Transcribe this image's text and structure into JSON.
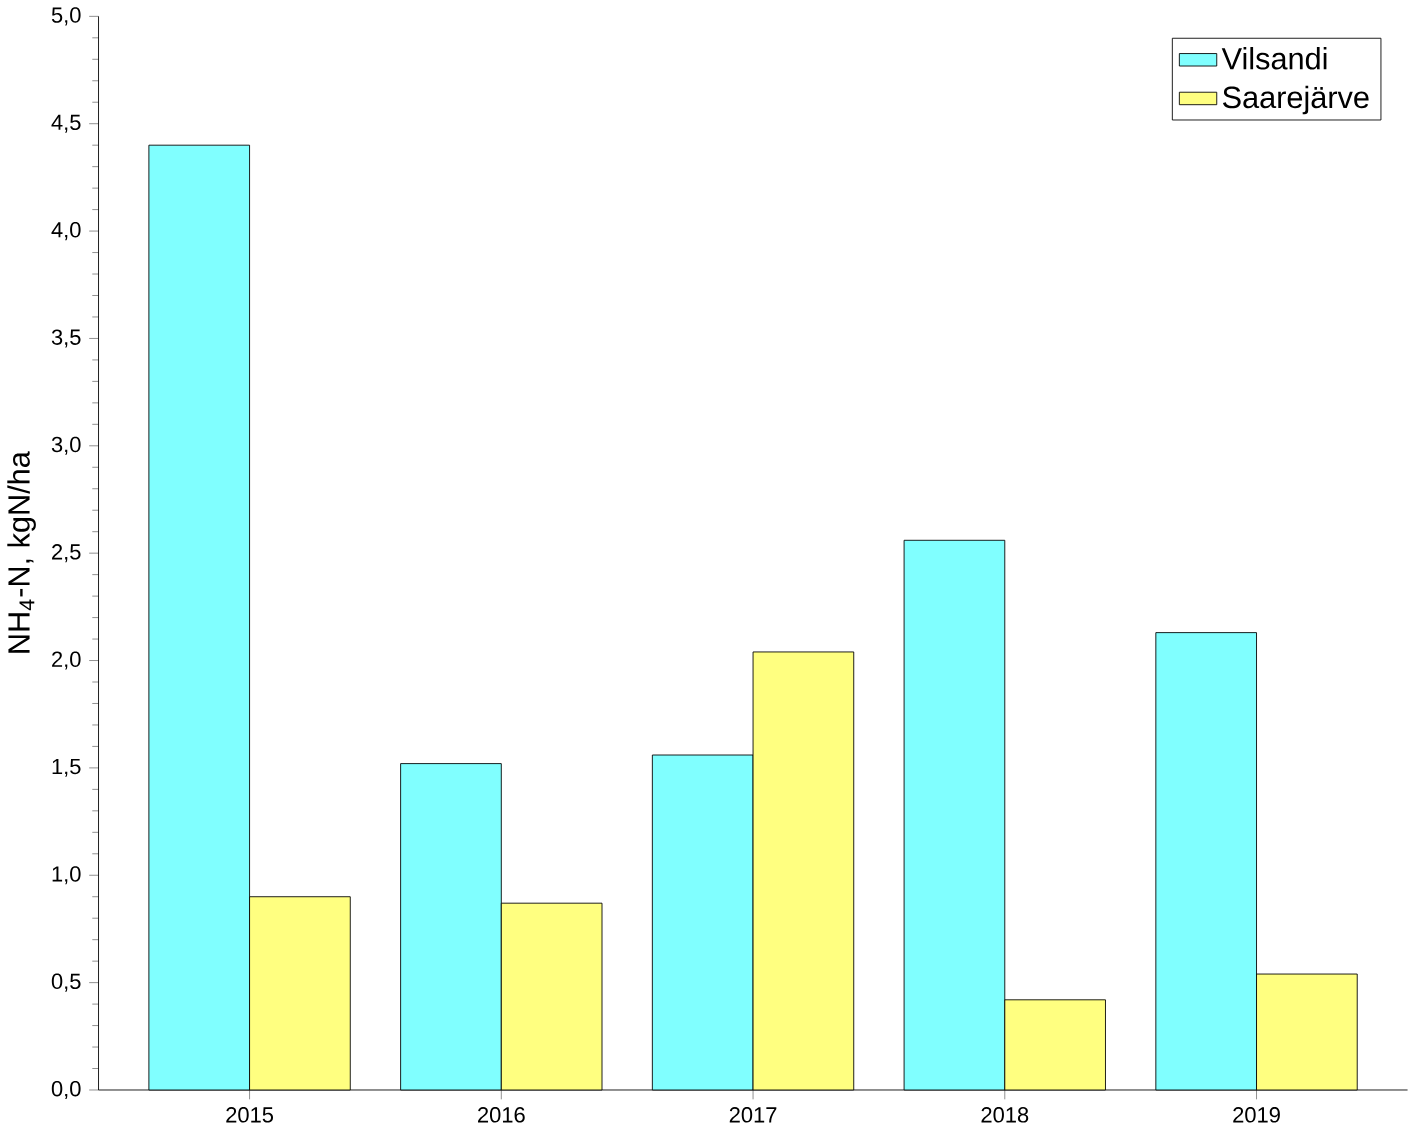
{
  "chart_data": {
    "type": "bar",
    "ylabel": "NH$_{4}$-N, kgN/ha",
    "categories": [
      "2015",
      "2016",
      "2017",
      "2018",
      "2019"
    ],
    "series": [
      {
        "name": "Vilsandi",
        "color": "#80ffff",
        "values": [
          4.4,
          1.52,
          1.56,
          2.56,
          2.13
        ]
      },
      {
        "name": "Saarejärve",
        "color": "#ffff80",
        "values": [
          0.9,
          0.87,
          2.04,
          0.42,
          0.54
        ]
      }
    ],
    "ylim": [
      0,
      5
    ],
    "yticks": [
      {
        "value": 0,
        "label": "0,0"
      },
      {
        "value": 0.5,
        "label": "0,5"
      },
      {
        "value": 1,
        "label": "1,0"
      },
      {
        "value": 1.5,
        "label": "1,5"
      },
      {
        "value": 2,
        "label": "2,0"
      },
      {
        "value": 2.5,
        "label": "2,5"
      },
      {
        "value": 3,
        "label": "3,0"
      },
      {
        "value": 3.5,
        "label": "3,5"
      },
      {
        "value": 4,
        "label": "4,0"
      },
      {
        "value": 4.5,
        "label": "4,5"
      },
      {
        "value": 5,
        "label": "5,0"
      }
    ],
    "legend": "top right",
    "grid": false
  }
}
